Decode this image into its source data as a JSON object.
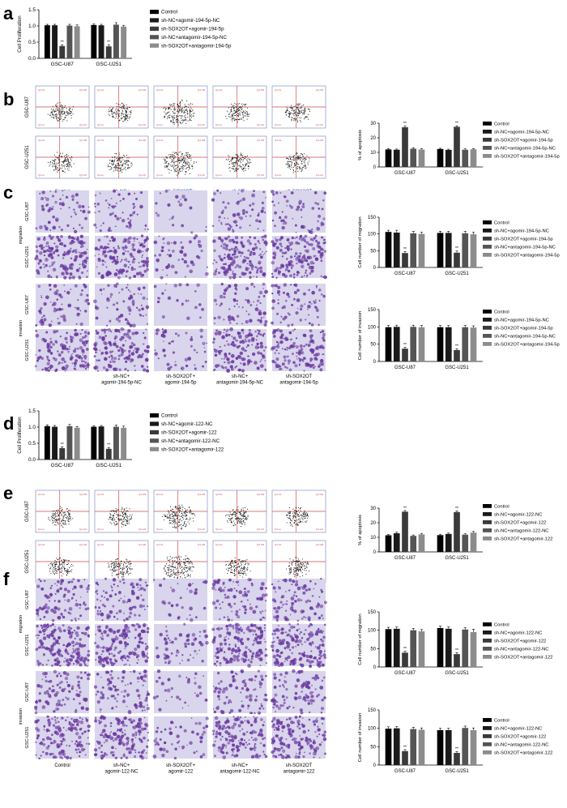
{
  "panels": {
    "a": "a",
    "b": "b",
    "c": "c",
    "d": "d",
    "e": "e",
    "f": "f"
  },
  "colors": {
    "bars": [
      "#000000",
      "#1a1a1a",
      "#3a3a3a",
      "#555555",
      "#8c8c8c"
    ],
    "crosshair": "#d24a4a",
    "frame": "#6f7fbf",
    "stain_light": "#d9d5ec",
    "stain_cell": "#6a3aa0",
    "scatter_dot": "#222222"
  },
  "row_labels": {
    "gsc_u87": "GSC-U87",
    "gsc_u251": "GSC-U251",
    "migration": "migration",
    "invasion": "invasion"
  },
  "quadrant_labels": [
    "Q1-UL",
    "Q1-UR",
    "Q1-LL",
    "Q1-LR"
  ],
  "b_columns": [
    "Control",
    "sh-NC+\nagomir-194-5p-NC",
    "sh-SOX2OT+\nagomir-194-5p",
    "sh-NC+\nantagomir-194-5p-NC",
    "sh-SOX2OT\nantagomir-194-5p"
  ],
  "c_columns": [
    "",
    "sh-NC+\nagomir-194-5p-NC",
    "sh-SOX2OT+\nagomir-194-5p",
    "sh-NC+\nantagomir-194-5p-NC",
    "sh-SOX2OT\nantagomir-194-5p"
  ],
  "e_columns": [
    "",
    "sh-NC+\nagomir-122-NC",
    "sh-SOX2OT+\nagomir-122",
    "sh-NC+\nantagomir-122-NC",
    "sh-SOX2OT\nantagomir-122"
  ],
  "f_columns": [
    "Control",
    "sh-NC+\nagomir-122-NC",
    "sh-SOX2OT+\nagomir-122",
    "sh-NC+\nantagomir-122-NC",
    "sh-SOX2OT\nantagomir-122"
  ],
  "chart_data": [
    {
      "id": "a",
      "type": "bar",
      "ylabel": "Cell Proliferation",
      "categories": [
        "GSC-U87",
        "GSC-U251"
      ],
      "yticks": [
        "0.0",
        "0.5",
        "1.0",
        "1.5"
      ],
      "ylim": [
        0,
        1.5
      ],
      "legend_position": "right",
      "series": [
        {
          "name": "Control",
          "values": [
            1.02,
            1.03
          ]
        },
        {
          "name": "sh-NC+agomir-194-5p-NC",
          "values": [
            1.02,
            1.02
          ]
        },
        {
          "name": "sh-SOX2OT+agomir-194-5p",
          "values": [
            0.38,
            0.37
          ]
        },
        {
          "name": "sh-NC+antagomir-194-5p-NC",
          "values": [
            1.01,
            1.04
          ]
        },
        {
          "name": "sh-SOX2OT+antagomir-194-5p",
          "values": [
            0.99,
            0.98
          ]
        }
      ],
      "errors": [
        [
          0.03,
          0.03
        ],
        [
          0.03,
          0.03
        ],
        [
          0.04,
          0.05
        ],
        [
          0.04,
          0.06
        ],
        [
          0.04,
          0.04
        ]
      ],
      "annotations": [
        "",
        "",
        "**",
        "",
        ""
      ]
    },
    {
      "id": "b",
      "type": "bar",
      "ylabel": "% of apoptosis",
      "categories": [
        "GSC-U87",
        "GSC-U251"
      ],
      "yticks": [
        "0",
        "10",
        "20",
        "30"
      ],
      "ylim": [
        0,
        30
      ],
      "legend_position": "right",
      "series": [
        {
          "name": "Control",
          "values": [
            12,
            12.3
          ]
        },
        {
          "name": "sh-NC+agomir-194-5p-NC",
          "values": [
            11.8,
            11.7
          ]
        },
        {
          "name": "sh-SOX2OT+agomir-194-5p",
          "values": [
            27.2,
            27.5
          ]
        },
        {
          "name": "sh-NC+antagomir-194-5p-NC",
          "values": [
            12.5,
            11.8
          ]
        },
        {
          "name": "sh-SOX2OT+antagomir-194-5p",
          "values": [
            11.9,
            12.1
          ]
        }
      ],
      "errors": [
        [
          0.6,
          0.5
        ],
        [
          0.5,
          0.5
        ],
        [
          0.8,
          0.7
        ],
        [
          0.7,
          0.6
        ],
        [
          0.6,
          0.5
        ]
      ],
      "annotations": [
        "",
        "",
        "**",
        "",
        ""
      ]
    },
    {
      "id": "c_migration",
      "type": "bar",
      "ylabel": "Cell number of migration",
      "categories": [
        "GSC-U87",
        "GSC-U251"
      ],
      "yticks": [
        "0",
        "50",
        "100",
        "150"
      ],
      "ylim": [
        0,
        150
      ],
      "legend_position": "right",
      "series": [
        {
          "name": "Control",
          "values": [
            106,
            103
          ]
        },
        {
          "name": "sh-NC+agomir-194-5p-NC",
          "values": [
            104,
            103
          ]
        },
        {
          "name": "sh-SOX2OT+agomir-194-5p",
          "values": [
            43,
            44
          ]
        },
        {
          "name": "sh-NC+antagomir-194-5p-NC",
          "values": [
            102,
            102
          ]
        },
        {
          "name": "sh-SOX2OT+antagomir-194-5p",
          "values": [
            100,
            99
          ]
        }
      ],
      "errors": [
        [
          5,
          5
        ],
        [
          7,
          5
        ],
        [
          4,
          5
        ],
        [
          6,
          6
        ],
        [
          5,
          6
        ]
      ],
      "annotations": [
        "",
        "",
        "**",
        "",
        ""
      ]
    },
    {
      "id": "c_invasion",
      "type": "bar",
      "ylabel": "Cell number of invasion",
      "categories": [
        "GSC-U87",
        "GSC-U251"
      ],
      "yticks": [
        "0",
        "50",
        "100",
        "150"
      ],
      "ylim": [
        0,
        150
      ],
      "legend_position": "right",
      "series": [
        {
          "name": "Control",
          "values": [
            99,
            99
          ]
        },
        {
          "name": "sh-NC+agomir-194-5p-NC",
          "values": [
            100,
            99
          ]
        },
        {
          "name": "sh-SOX2OT+agomir-194-5p",
          "values": [
            37,
            33
          ]
        },
        {
          "name": "sh-NC+antagomir-194-5p-NC",
          "values": [
            100,
            99
          ]
        },
        {
          "name": "sh-SOX2OT+antagomir-194-5p",
          "values": [
            99,
            98
          ]
        }
      ],
      "errors": [
        [
          5,
          5
        ],
        [
          5,
          5
        ],
        [
          4,
          4
        ],
        [
          5,
          5
        ],
        [
          5,
          5
        ]
      ],
      "annotations": [
        "",
        "",
        "**",
        "",
        ""
      ]
    },
    {
      "id": "d",
      "type": "bar",
      "ylabel": "Cell Proliferation",
      "categories": [
        "GSC-U87",
        "GSC-U251"
      ],
      "yticks": [
        "0.0",
        "0.5",
        "1.0",
        "1.5"
      ],
      "ylim": [
        0,
        1.5
      ],
      "legend_position": "right",
      "series": [
        {
          "name": "Control",
          "values": [
            1.03,
            1.01
          ]
        },
        {
          "name": "sh-NC+agomir-122-NC",
          "values": [
            1.01,
            1.02
          ]
        },
        {
          "name": "sh-SOX2OT+agomir-122",
          "values": [
            0.35,
            0.33
          ]
        },
        {
          "name": "sh-NC+antagomir-122-NC",
          "values": [
            1.03,
            1.01
          ]
        },
        {
          "name": "sh-SOX2OT+antagomir-122",
          "values": [
            0.98,
            0.98
          ]
        }
      ],
      "errors": [
        [
          0.04,
          0.03
        ],
        [
          0.04,
          0.03
        ],
        [
          0.04,
          0.04
        ],
        [
          0.05,
          0.05
        ],
        [
          0.04,
          0.05
        ]
      ],
      "annotations": [
        "",
        "",
        "**",
        "",
        ""
      ]
    },
    {
      "id": "e",
      "type": "bar",
      "ylabel": "% of apoptosis",
      "categories": [
        "GSC-U87",
        "GSC-U251"
      ],
      "yticks": [
        "0",
        "10",
        "20",
        "30"
      ],
      "ylim": [
        0,
        30
      ],
      "legend_position": "right",
      "series": [
        {
          "name": "Control",
          "values": [
            11.4,
            11.5
          ]
        },
        {
          "name": "sh-NC+agomir-122-NC",
          "values": [
            12.8,
            12.3
          ]
        },
        {
          "name": "sh-SOX2OT+agomir-122",
          "values": [
            27.6,
            27.3
          ]
        },
        {
          "name": "sh-NC+antagomir-122-NC",
          "values": [
            11,
            11.8
          ]
        },
        {
          "name": "sh-SOX2OT+antagomir-122",
          "values": [
            12,
            13.2
          ]
        }
      ],
      "errors": [
        [
          0.5,
          0.6
        ],
        [
          0.7,
          0.6
        ],
        [
          0.8,
          0.8
        ],
        [
          0.6,
          0.6
        ],
        [
          0.7,
          0.8
        ]
      ],
      "annotations": [
        "",
        "",
        "**",
        "",
        ""
      ]
    },
    {
      "id": "f_migration",
      "type": "bar",
      "ylabel": "Cell number of migration",
      "categories": [
        "GSC-U87",
        "GSC-U251"
      ],
      "yticks": [
        "0",
        "50",
        "100",
        "150"
      ],
      "ylim": [
        0,
        150
      ],
      "legend_position": "right",
      "series": [
        {
          "name": "Control",
          "values": [
            103,
            106
          ]
        },
        {
          "name": "sh-NC+agomir-122-NC",
          "values": [
            104,
            104
          ]
        },
        {
          "name": "sh-SOX2OT+agomir-122",
          "values": [
            39,
            35
          ]
        },
        {
          "name": "sh-NC+antagomir-122-NC",
          "values": [
            100,
            102
          ]
        },
        {
          "name": "sh-SOX2OT+antagomir-122",
          "values": [
            97,
            95
          ]
        }
      ],
      "errors": [
        [
          5,
          5
        ],
        [
          5,
          5
        ],
        [
          4,
          4
        ],
        [
          5,
          5
        ],
        [
          5,
          8
        ]
      ],
      "annotations": [
        "",
        "",
        "**",
        "",
        ""
      ]
    },
    {
      "id": "f_invasion",
      "type": "bar",
      "ylabel": "Cell number of invasion",
      "categories": [
        "GSC-U87",
        "GSC-U251"
      ],
      "yticks": [
        "0",
        "50",
        "100",
        "150"
      ],
      "ylim": [
        0,
        150
      ],
      "legend_position": "right",
      "series": [
        {
          "name": "Control",
          "values": [
            99,
            95
          ]
        },
        {
          "name": "sh-NC+agomir-122-NC",
          "values": [
            100,
            95
          ]
        },
        {
          "name": "sh-SOX2OT+agomir-122",
          "values": [
            38,
            33
          ]
        },
        {
          "name": "sh-NC+antagomir-122-NC",
          "values": [
            98,
            101
          ]
        },
        {
          "name": "sh-SOX2OT+antagomir-122",
          "values": [
            96,
            95
          ]
        }
      ],
      "errors": [
        [
          5,
          5
        ],
        [
          5,
          5
        ],
        [
          4,
          4
        ],
        [
          5,
          5
        ],
        [
          5,
          6
        ]
      ],
      "annotations": [
        "",
        "",
        "**",
        "",
        ""
      ]
    }
  ]
}
